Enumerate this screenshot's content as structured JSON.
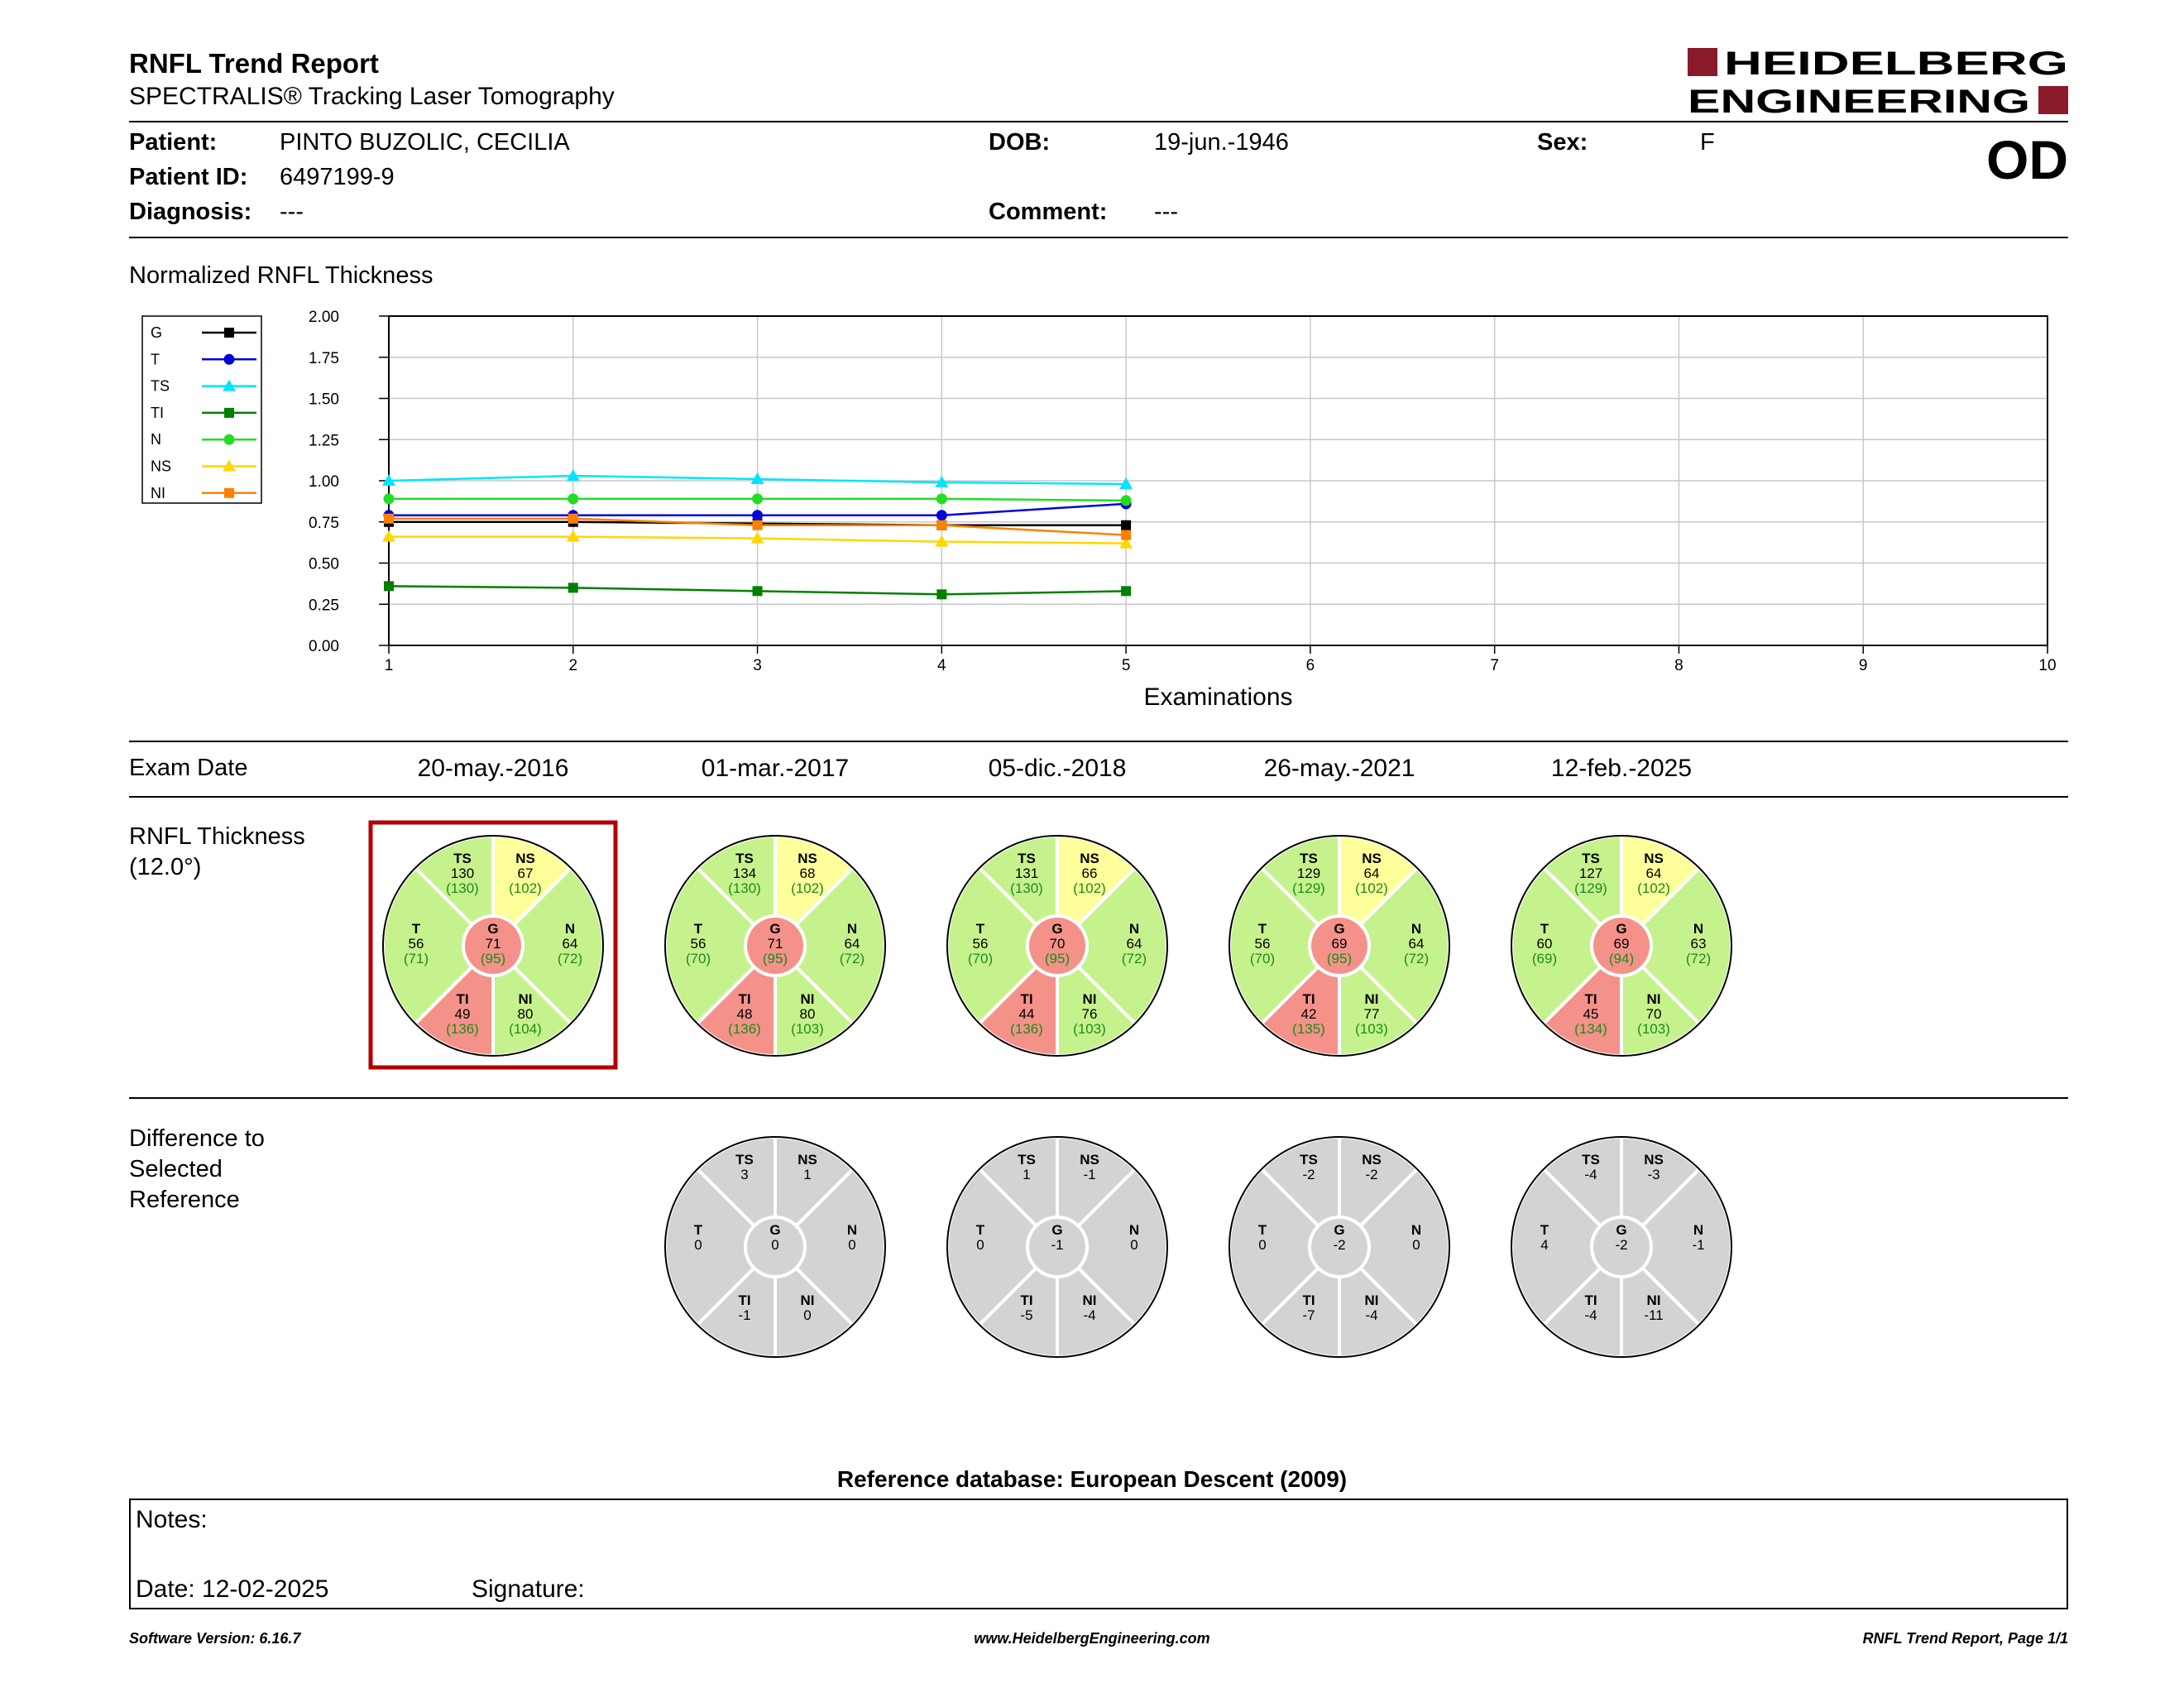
{
  "header": {
    "title": "RNFL Trend Report",
    "subtitle": "SPECTRALIS® Tracking Laser Tomography",
    "logo_line1": "HEIDELBERG",
    "logo_line2": "ENGINEERING",
    "eye": "OD"
  },
  "patient": {
    "name_label": "Patient:",
    "name": "PINTO BUZOLIC, CECILIA",
    "id_label": "Patient ID:",
    "id": "6497199-9",
    "diagnosis_label": "Diagnosis:",
    "diagnosis": "---",
    "dob_label": "DOB:",
    "dob": "19-jun.-1946",
    "comment_label": "Comment:",
    "comment": "---",
    "sex_label": "Sex:",
    "sex": "F"
  },
  "chart_section_title": "Normalized RNFL Thickness",
  "chart_data": {
    "type": "line",
    "xlabel": "Examinations",
    "ylabel": "",
    "x": [
      1,
      2,
      3,
      4,
      5
    ],
    "xlim": [
      1,
      10
    ],
    "ylim": [
      0,
      2
    ],
    "xticks": [
      "1",
      "2",
      "3",
      "4",
      "5",
      "6",
      "7",
      "8",
      "9",
      "10"
    ],
    "yticks": [
      "0.00",
      "0.25",
      "0.50",
      "0.75",
      "1.00",
      "1.25",
      "1.50",
      "1.75",
      "2.00"
    ],
    "grid": true,
    "legend_position": "left",
    "series": [
      {
        "name": "G",
        "color": "#000000",
        "marker": "square",
        "values": [
          0.75,
          0.75,
          0.74,
          0.73,
          0.73
        ]
      },
      {
        "name": "T",
        "color": "#0000dd",
        "marker": "circle",
        "values": [
          0.79,
          0.79,
          0.79,
          0.79,
          0.86
        ]
      },
      {
        "name": "TS",
        "color": "#00e5ff",
        "marker": "triangle",
        "values": [
          1.0,
          1.03,
          1.01,
          0.99,
          0.98
        ]
      },
      {
        "name": "TI",
        "color": "#008000",
        "marker": "square",
        "values": [
          0.36,
          0.35,
          0.33,
          0.31,
          0.33
        ]
      },
      {
        "name": "N",
        "color": "#22dd22",
        "marker": "circle",
        "values": [
          0.89,
          0.89,
          0.89,
          0.89,
          0.88
        ]
      },
      {
        "name": "NS",
        "color": "#ffd700",
        "marker": "triangle",
        "values": [
          0.66,
          0.66,
          0.65,
          0.63,
          0.62
        ]
      },
      {
        "name": "NI",
        "color": "#ff8000",
        "marker": "square",
        "values": [
          0.77,
          0.77,
          0.73,
          0.73,
          0.67
        ]
      }
    ]
  },
  "exam_date_label": "Exam Date",
  "exam_dates": [
    "20-may.-2016",
    "01-mar.-2017",
    "05-dic.-2018",
    "26-may.-2021",
    "12-feb.-2025"
  ],
  "thickness_label_line1": "RNFL Thickness",
  "thickness_label_line2": "(12.0°)",
  "difference_label_line1": "Difference to",
  "difference_label_line2": "Selected",
  "difference_label_line3": "Reference",
  "colors": {
    "normal": "#c6f28e",
    "borderline": "#fefe9b",
    "outside": "#f4928a",
    "diff": "#d3d3d3",
    "selected": "#b30000",
    "ref_text": "#1a8c1a"
  },
  "thickness_plots": [
    {
      "selected": true,
      "TS": {
        "v": "130",
        "r": "(130)",
        "c": "normal"
      },
      "NS": {
        "v": "67",
        "r": "(102)",
        "c": "borderline"
      },
      "T": {
        "v": "56",
        "r": "(71)",
        "c": "normal"
      },
      "G": {
        "v": "71",
        "r": "(95)",
        "c": "outside"
      },
      "N": {
        "v": "64",
        "r": "(72)",
        "c": "normal"
      },
      "TI": {
        "v": "49",
        "r": "(136)",
        "c": "outside"
      },
      "NI": {
        "v": "80",
        "r": "(104)",
        "c": "normal"
      }
    },
    {
      "selected": false,
      "TS": {
        "v": "134",
        "r": "(130)",
        "c": "normal"
      },
      "NS": {
        "v": "68",
        "r": "(102)",
        "c": "borderline"
      },
      "T": {
        "v": "56",
        "r": "(70)",
        "c": "normal"
      },
      "G": {
        "v": "71",
        "r": "(95)",
        "c": "outside"
      },
      "N": {
        "v": "64",
        "r": "(72)",
        "c": "normal"
      },
      "TI": {
        "v": "48",
        "r": "(136)",
        "c": "outside"
      },
      "NI": {
        "v": "80",
        "r": "(103)",
        "c": "normal"
      }
    },
    {
      "selected": false,
      "TS": {
        "v": "131",
        "r": "(130)",
        "c": "normal"
      },
      "NS": {
        "v": "66",
        "r": "(102)",
        "c": "borderline"
      },
      "T": {
        "v": "56",
        "r": "(70)",
        "c": "normal"
      },
      "G": {
        "v": "70",
        "r": "(95)",
        "c": "outside"
      },
      "N": {
        "v": "64",
        "r": "(72)",
        "c": "normal"
      },
      "TI": {
        "v": "44",
        "r": "(136)",
        "c": "outside"
      },
      "NI": {
        "v": "76",
        "r": "(103)",
        "c": "normal"
      }
    },
    {
      "selected": false,
      "TS": {
        "v": "129",
        "r": "(129)",
        "c": "normal"
      },
      "NS": {
        "v": "64",
        "r": "(102)",
        "c": "borderline"
      },
      "T": {
        "v": "56",
        "r": "(70)",
        "c": "normal"
      },
      "G": {
        "v": "69",
        "r": "(95)",
        "c": "outside"
      },
      "N": {
        "v": "64",
        "r": "(72)",
        "c": "normal"
      },
      "TI": {
        "v": "42",
        "r": "(135)",
        "c": "outside"
      },
      "NI": {
        "v": "77",
        "r": "(103)",
        "c": "normal"
      }
    },
    {
      "selected": false,
      "TS": {
        "v": "127",
        "r": "(129)",
        "c": "normal"
      },
      "NS": {
        "v": "64",
        "r": "(102)",
        "c": "borderline"
      },
      "T": {
        "v": "60",
        "r": "(69)",
        "c": "normal"
      },
      "G": {
        "v": "69",
        "r": "(94)",
        "c": "outside"
      },
      "N": {
        "v": "63",
        "r": "(72)",
        "c": "normal"
      },
      "TI": {
        "v": "45",
        "r": "(134)",
        "c": "outside"
      },
      "NI": {
        "v": "70",
        "r": "(103)",
        "c": "normal"
      }
    }
  ],
  "difference_plots": [
    null,
    {
      "TS": "3",
      "NS": "1",
      "T": "0",
      "G": "0",
      "N": "0",
      "TI": "-1",
      "NI": "0"
    },
    {
      "TS": "1",
      "NS": "-1",
      "T": "0",
      "G": "-1",
      "N": "0",
      "TI": "-5",
      "NI": "-4"
    },
    {
      "TS": "-2",
      "NS": "-2",
      "T": "0",
      "G": "-2",
      "N": "0",
      "TI": "-7",
      "NI": "-4"
    },
    {
      "TS": "-4",
      "NS": "-3",
      "T": "4",
      "G": "-2",
      "N": "-1",
      "TI": "-4",
      "NI": "-11"
    }
  ],
  "reference_database": "Reference database: European Descent (2009)",
  "notes": {
    "notes_label": "Notes:",
    "date_label": "Date: 12-02-2025",
    "signature_label": "Signature:"
  },
  "footer": {
    "left": "Software Version: 6.16.7",
    "center": "www.HeidelbergEngineering.com",
    "right": "RNFL Trend Report, Page 1/1"
  }
}
